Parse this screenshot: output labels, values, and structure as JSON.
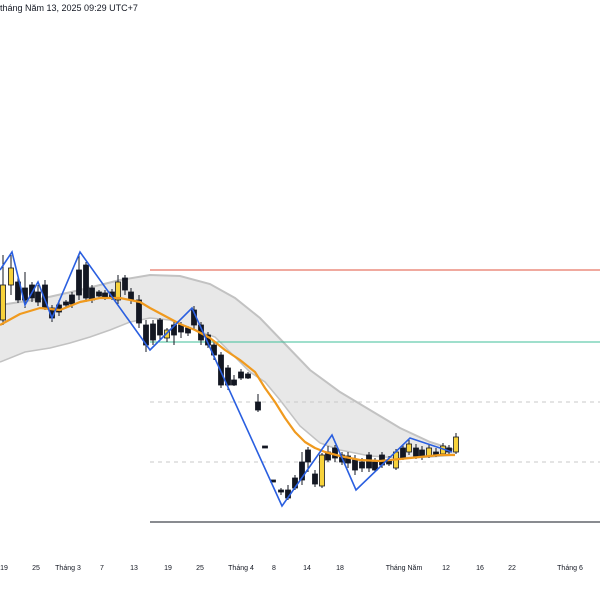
{
  "header": {
    "timestamp": "tháng Năm 13, 2025 09:29 UTC+7"
  },
  "colors": {
    "background": "#ffffff",
    "candle_up": "#f7d23b",
    "candle_down": "#131722",
    "zigzag": "#2a5fe0",
    "moving_average": "#f09a1e",
    "cloud_fill": "#e6e6e6",
    "cloud_edge": "#c2c2c2",
    "level_red": "#e0533f",
    "level_green": "#3fbf9a",
    "level_dashed": "#c9c9c9",
    "level_black": "#131722"
  },
  "chart_data": {
    "type": "candlestick",
    "xaxis_labels": [
      "19",
      "25",
      "Tháng 3",
      "7",
      "13",
      "19",
      "25",
      "Tháng 4",
      "8",
      "14",
      "18",
      "Tháng Năm",
      "12",
      "16",
      "22",
      "Tháng 6"
    ],
    "overlays": [
      "zigzag",
      "moving-average",
      "band-cloud",
      "horizontal-levels"
    ],
    "grid": false,
    "yaxis_visible": false
  }
}
